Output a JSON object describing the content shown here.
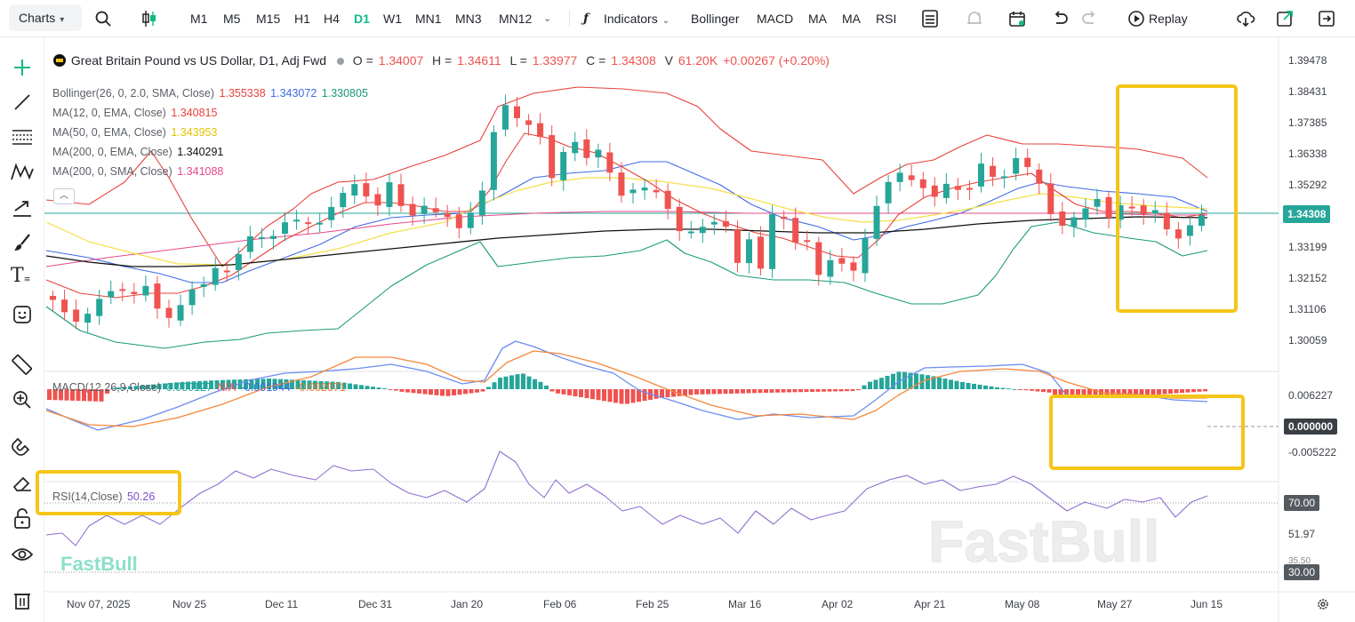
{
  "toolbar": {
    "charts_label": "Charts",
    "timeframes": [
      "M1",
      "M5",
      "M15",
      "H1",
      "H4",
      "D1",
      "W1",
      "MN1",
      "MN3",
      "MN12"
    ],
    "active_timeframe": "D1",
    "indicators_label": "Indicators",
    "quick_indicators": [
      "Bollinger",
      "MACD",
      "MA",
      "MA",
      "RSI"
    ],
    "replay_label": "Replay"
  },
  "symbol": {
    "name": "Great Britain Pound vs US Dollar, D1, Adj Fwd",
    "o_label": "O = ",
    "o": "1.34007",
    "h_label": "H = ",
    "h": "1.34611",
    "l_label": "L = ",
    "l": "1.33977",
    "c_label": "C = ",
    "c": "1.34308",
    "v_label": "V",
    "v": "61.20K",
    "change": "+0.00267 (+0.20%)"
  },
  "indicators": {
    "bollinger": {
      "label": "Bollinger(26, 0, 2.0, SMA, Close)",
      "upper": "1.355338",
      "middle": "1.343072",
      "lower": "1.330805"
    },
    "ma1": {
      "label": "MA(12, 0, EMA, Close)",
      "value": "1.340815"
    },
    "ma2": {
      "label": "MA(50, 0, EMA, Close)",
      "value": "1.343953"
    },
    "ma3": {
      "label": "MA(200, 0, EMA, Close)",
      "value": "1.340291"
    },
    "ma4": {
      "label": "MA(200, 0, SMA, Close)",
      "value": "1.341088"
    },
    "macd": {
      "label": "MACD(12,26,9,Close)",
      "hist": "0.000127",
      "na": "N/A",
      "macd": "-0.001944",
      "signal": "-0.002071"
    },
    "rsi": {
      "label": "RSI(14,Close)",
      "value": "50.26"
    }
  },
  "price_axis": [
    "1.39478",
    "1.38431",
    "1.37385",
    "1.36338",
    "1.35292",
    "1.34308",
    "1.33199",
    "1.32152",
    "1.31106",
    "1.30059"
  ],
  "current_price": "1.34308",
  "macd_axis": [
    "0.006227",
    "0.000000",
    "-0.005222"
  ],
  "rsi_axis": [
    "70.00",
    "51.97",
    "35.50",
    "30.00"
  ],
  "dates": [
    "Nov 07, 2025",
    "Nov 25",
    "Dec 11",
    "Dec 31",
    "Jan 20",
    "Feb 06",
    "Feb 25",
    "Mar 16",
    "Apr 02",
    "Apr 21",
    "May 08",
    "May 27",
    "Jun 15"
  ],
  "watermark": "FastBull",
  "colors": {
    "up": "#26a69a",
    "down": "#ef5350",
    "accent": "#12b886",
    "highlight": "#f5c518",
    "bb_upper": "#e8413c",
    "bb_mid": "#3f6ae6",
    "bb_lower": "#1a9a78",
    "ma12": "#e8413c",
    "ma50": "#f5e04a",
    "ema200": "#111111",
    "sma200": "#e64a8a"
  },
  "sidebar_icons": [
    "crosshair-icon",
    "trendline-icon",
    "fib-icon",
    "pattern-icon",
    "arrow-tool-icon",
    "brush-icon",
    "text-tool-icon",
    "emoji-icon",
    "ruler-icon",
    "zoom-in-icon",
    "magnet-icon",
    "eraser-icon",
    "lock-icon",
    "eye-icon",
    "trash-icon"
  ]
}
